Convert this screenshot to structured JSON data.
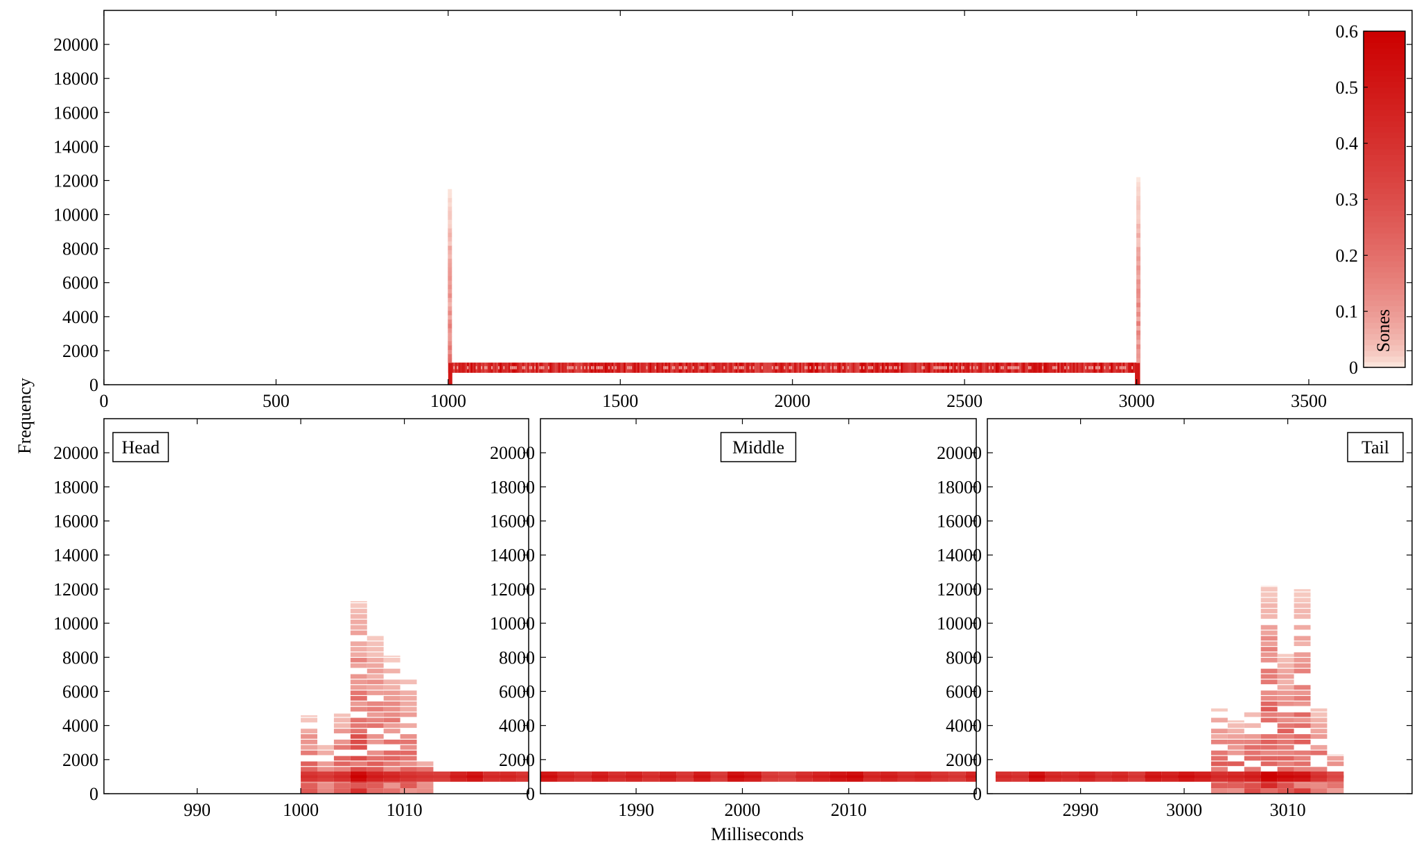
{
  "figure": {
    "ylabel": "Frequency",
    "xlabel": "Milliseconds"
  },
  "colorbar": {
    "label": "Sones",
    "range": [
      0,
      0.6
    ],
    "ticks": [
      0,
      0.1,
      0.2,
      0.3,
      0.4,
      0.5,
      0.6
    ],
    "color_low": "#fff5eb",
    "color_high": "#cc0000"
  },
  "chart_data": [
    {
      "type": "heatmap",
      "panel": "overview",
      "xlim": [
        0,
        3800
      ],
      "ylim": [
        0,
        22000
      ],
      "xticks": [
        0,
        500,
        1000,
        1500,
        2000,
        2500,
        3000,
        3500
      ],
      "yticks": [
        0,
        2000,
        4000,
        6000,
        8000,
        10000,
        12000,
        14000,
        16000,
        18000,
        20000
      ],
      "tone": {
        "start_ms": 1000,
        "end_ms": 3000,
        "freq_low": 700,
        "freq_high": 1300,
        "intensity": 0.45
      },
      "onset_splatter": [
        {
          "x_ms": 1005,
          "freq_max": 11500,
          "intensity": 0.15
        },
        {
          "x_ms": 3005,
          "freq_max": 12200,
          "intensity": 0.15
        }
      ]
    },
    {
      "type": "heatmap",
      "panel": "head",
      "title": "Head",
      "xlim": [
        981,
        1022
      ],
      "ylim": [
        0,
        22000
      ],
      "xticks": [
        990,
        1000,
        1010
      ],
      "yticks": [
        0,
        2000,
        4000,
        6000,
        8000,
        10000,
        12000,
        14000,
        16000,
        18000,
        20000
      ],
      "bin_width_ms": 1.6,
      "tone_band": [
        700,
        1300
      ],
      "columns": [
        {
          "x": 1000.0,
          "fmax": 4600,
          "peak": 0.38
        },
        {
          "x": 1001.6,
          "fmax": 2900,
          "peak": 0.35
        },
        {
          "x": 1003.2,
          "fmax": 4700,
          "peak": 0.4
        },
        {
          "x": 1004.8,
          "fmax": 11300,
          "peak": 0.55
        },
        {
          "x": 1006.4,
          "fmax": 9300,
          "peak": 0.45
        },
        {
          "x": 1008.0,
          "fmax": 8100,
          "peak": 0.42
        },
        {
          "x": 1009.6,
          "fmax": 7000,
          "peak": 0.38
        },
        {
          "x": 1011.2,
          "fmax": 1900,
          "peak": 0.36
        },
        {
          "x": 1012.8,
          "fmax": 1300,
          "peak": 0.35
        },
        {
          "x": 1014.4,
          "fmax": 1300,
          "peak": 0.45
        },
        {
          "x": 1016.0,
          "fmax": 1300,
          "peak": 0.5
        },
        {
          "x": 1017.6,
          "fmax": 1300,
          "peak": 0.4
        },
        {
          "x": 1019.2,
          "fmax": 1300,
          "peak": 0.42
        },
        {
          "x": 1020.8,
          "fmax": 1300,
          "peak": 0.38
        }
      ]
    },
    {
      "type": "heatmap",
      "panel": "middle",
      "title": "Middle",
      "xlim": [
        1981,
        2022
      ],
      "ylim": [
        0,
        22000
      ],
      "xticks": [
        1990,
        2000,
        2010
      ],
      "yticks": [
        0,
        2000,
        4000,
        6000,
        8000,
        10000,
        12000,
        14000,
        16000,
        18000,
        20000
      ],
      "bin_width_ms": 1.6,
      "tone_band": [
        700,
        1300
      ],
      "columns": [
        {
          "x": 1981.0,
          "fmax": 1300,
          "peak": 0.5
        },
        {
          "x": 1982.6,
          "fmax": 1300,
          "peak": 0.42
        },
        {
          "x": 1984.2,
          "fmax": 1300,
          "peak": 0.38
        },
        {
          "x": 1985.8,
          "fmax": 1300,
          "peak": 0.46
        },
        {
          "x": 1987.4,
          "fmax": 1300,
          "peak": 0.4
        },
        {
          "x": 1989.0,
          "fmax": 1300,
          "peak": 0.44
        },
        {
          "x": 1990.6,
          "fmax": 1300,
          "peak": 0.39
        },
        {
          "x": 1992.2,
          "fmax": 1300,
          "peak": 0.45
        },
        {
          "x": 1993.8,
          "fmax": 1300,
          "peak": 0.37
        },
        {
          "x": 1995.4,
          "fmax": 1300,
          "peak": 0.48
        },
        {
          "x": 1997.0,
          "fmax": 1300,
          "peak": 0.36
        },
        {
          "x": 1998.6,
          "fmax": 1300,
          "peak": 0.52
        },
        {
          "x": 2000.2,
          "fmax": 1300,
          "peak": 0.47
        },
        {
          "x": 2001.8,
          "fmax": 1300,
          "peak": 0.35
        },
        {
          "x": 2003.4,
          "fmax": 1300,
          "peak": 0.33
        },
        {
          "x": 2005.0,
          "fmax": 1300,
          "peak": 0.4
        },
        {
          "x": 2006.6,
          "fmax": 1300,
          "peak": 0.44
        },
        {
          "x": 2008.2,
          "fmax": 1300,
          "peak": 0.5
        },
        {
          "x": 2009.8,
          "fmax": 1300,
          "peak": 0.53
        },
        {
          "x": 2011.4,
          "fmax": 1300,
          "peak": 0.42
        },
        {
          "x": 2013.0,
          "fmax": 1300,
          "peak": 0.45
        },
        {
          "x": 2014.6,
          "fmax": 1300,
          "peak": 0.4
        },
        {
          "x": 2016.2,
          "fmax": 1300,
          "peak": 0.43
        },
        {
          "x": 2017.8,
          "fmax": 1300,
          "peak": 0.38
        },
        {
          "x": 2019.4,
          "fmax": 1300,
          "peak": 0.36
        },
        {
          "x": 2021.0,
          "fmax": 1300,
          "peak": 0.44
        }
      ]
    },
    {
      "type": "heatmap",
      "panel": "tail",
      "title": "Tail",
      "xlim": [
        2981,
        3022
      ],
      "ylim": [
        0,
        22000
      ],
      "xticks": [
        2990,
        3000,
        3010
      ],
      "yticks": [
        0,
        2000,
        4000,
        6000,
        8000,
        10000,
        12000,
        14000,
        16000,
        18000,
        20000
      ],
      "bin_width_ms": 1.6,
      "tone_band": [
        700,
        1300
      ],
      "columns": [
        {
          "x": 2981.8,
          "fmax": 1300,
          "peak": 0.4
        },
        {
          "x": 2983.4,
          "fmax": 1300,
          "peak": 0.38
        },
        {
          "x": 2985.0,
          "fmax": 1300,
          "peak": 0.52
        },
        {
          "x": 2986.6,
          "fmax": 1300,
          "peak": 0.42
        },
        {
          "x": 2988.2,
          "fmax": 1300,
          "peak": 0.4
        },
        {
          "x": 2989.8,
          "fmax": 1300,
          "peak": 0.44
        },
        {
          "x": 2991.4,
          "fmax": 1300,
          "peak": 0.38
        },
        {
          "x": 2993.0,
          "fmax": 1300,
          "peak": 0.42
        },
        {
          "x": 2994.6,
          "fmax": 1300,
          "peak": 0.36
        },
        {
          "x": 2996.2,
          "fmax": 1300,
          "peak": 0.48
        },
        {
          "x": 2997.8,
          "fmax": 1300,
          "peak": 0.45
        },
        {
          "x": 2999.4,
          "fmax": 1300,
          "peak": 0.5
        },
        {
          "x": 3001.0,
          "fmax": 1300,
          "peak": 0.46
        },
        {
          "x": 3002.6,
          "fmax": 5000,
          "peak": 0.4
        },
        {
          "x": 3004.2,
          "fmax": 4300,
          "peak": 0.42
        },
        {
          "x": 3005.8,
          "fmax": 4800,
          "peak": 0.45
        },
        {
          "x": 3007.4,
          "fmax": 12200,
          "peak": 0.58
        },
        {
          "x": 3009.0,
          "fmax": 8200,
          "peak": 0.52
        },
        {
          "x": 3010.6,
          "fmax": 12000,
          "peak": 0.5
        },
        {
          "x": 3012.2,
          "fmax": 5000,
          "peak": 0.38
        },
        {
          "x": 3013.8,
          "fmax": 2300,
          "peak": 0.3
        }
      ]
    }
  ]
}
